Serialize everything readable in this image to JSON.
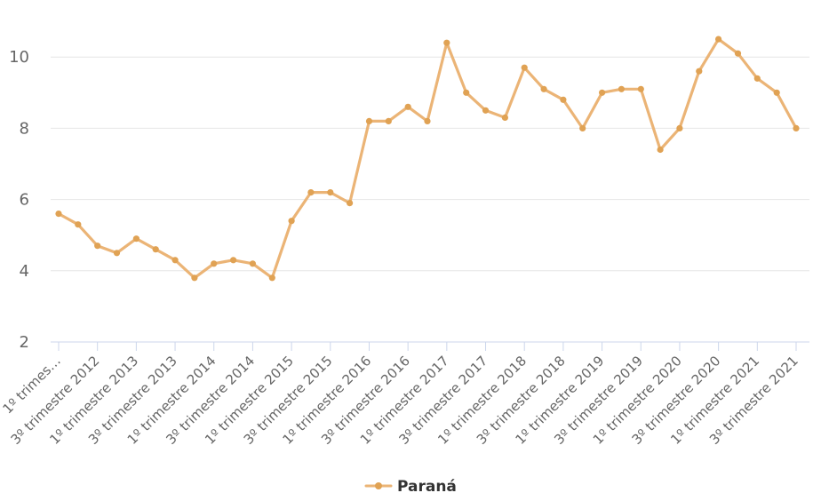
{
  "chart_data": {
    "type": "line",
    "title": "",
    "xlabel": "",
    "ylabel": "",
    "series": [
      {
        "name": "Paraná",
        "line_color": "#ebb476",
        "marker_color": "#e0a254",
        "values": [
          5.6,
          5.3,
          4.7,
          4.5,
          4.9,
          4.6,
          4.3,
          3.8,
          4.2,
          4.3,
          4.2,
          3.8,
          5.4,
          6.2,
          6.2,
          5.9,
          8.2,
          8.2,
          8.6,
          8.2,
          10.4,
          9.0,
          8.5,
          8.3,
          9.7,
          9.1,
          8.8,
          8.0,
          9.0,
          9.1,
          9.1,
          7.4,
          8.0,
          9.6,
          10.5,
          10.1,
          9.4,
          9.0,
          8.0
        ]
      }
    ],
    "x_tick_labels": [
      "1º trimes…",
      "3º trimestre 2012",
      "1º trimestre 2013",
      "3º trimestre 2013",
      "1º trimestre 2014",
      "3º trimestre 2014",
      "1º trimestre 2015",
      "3º trimestre 2015",
      "1º trimestre 2016",
      "3º trimestre 2016",
      "1º trimestre 2017",
      "3º trimestre 2017",
      "1º trimestre 2018",
      "3º trimestre 2018",
      "1º trimestre 2019",
      "3º trimestre 2019",
      "1º trimestre 2020",
      "3º trimestre 2020",
      "1º trimestre 2021",
      "3º trimestre 2021"
    ],
    "points_per_tick": 2,
    "y_tick_labels": [
      "2",
      "4",
      "6",
      "8",
      "10"
    ],
    "y_ticks": [
      2,
      4,
      6,
      8,
      10
    ],
    "ylim": [
      2,
      11.6
    ],
    "grid": "horizontal-only",
    "legend": {
      "label": "Paraná",
      "position": "bottom-center"
    },
    "colors": {
      "grid_line": "#e6e6e6",
      "axis_line": "#ccd6eb",
      "tick_label": "#666666",
      "legend_text": "#333333"
    }
  }
}
